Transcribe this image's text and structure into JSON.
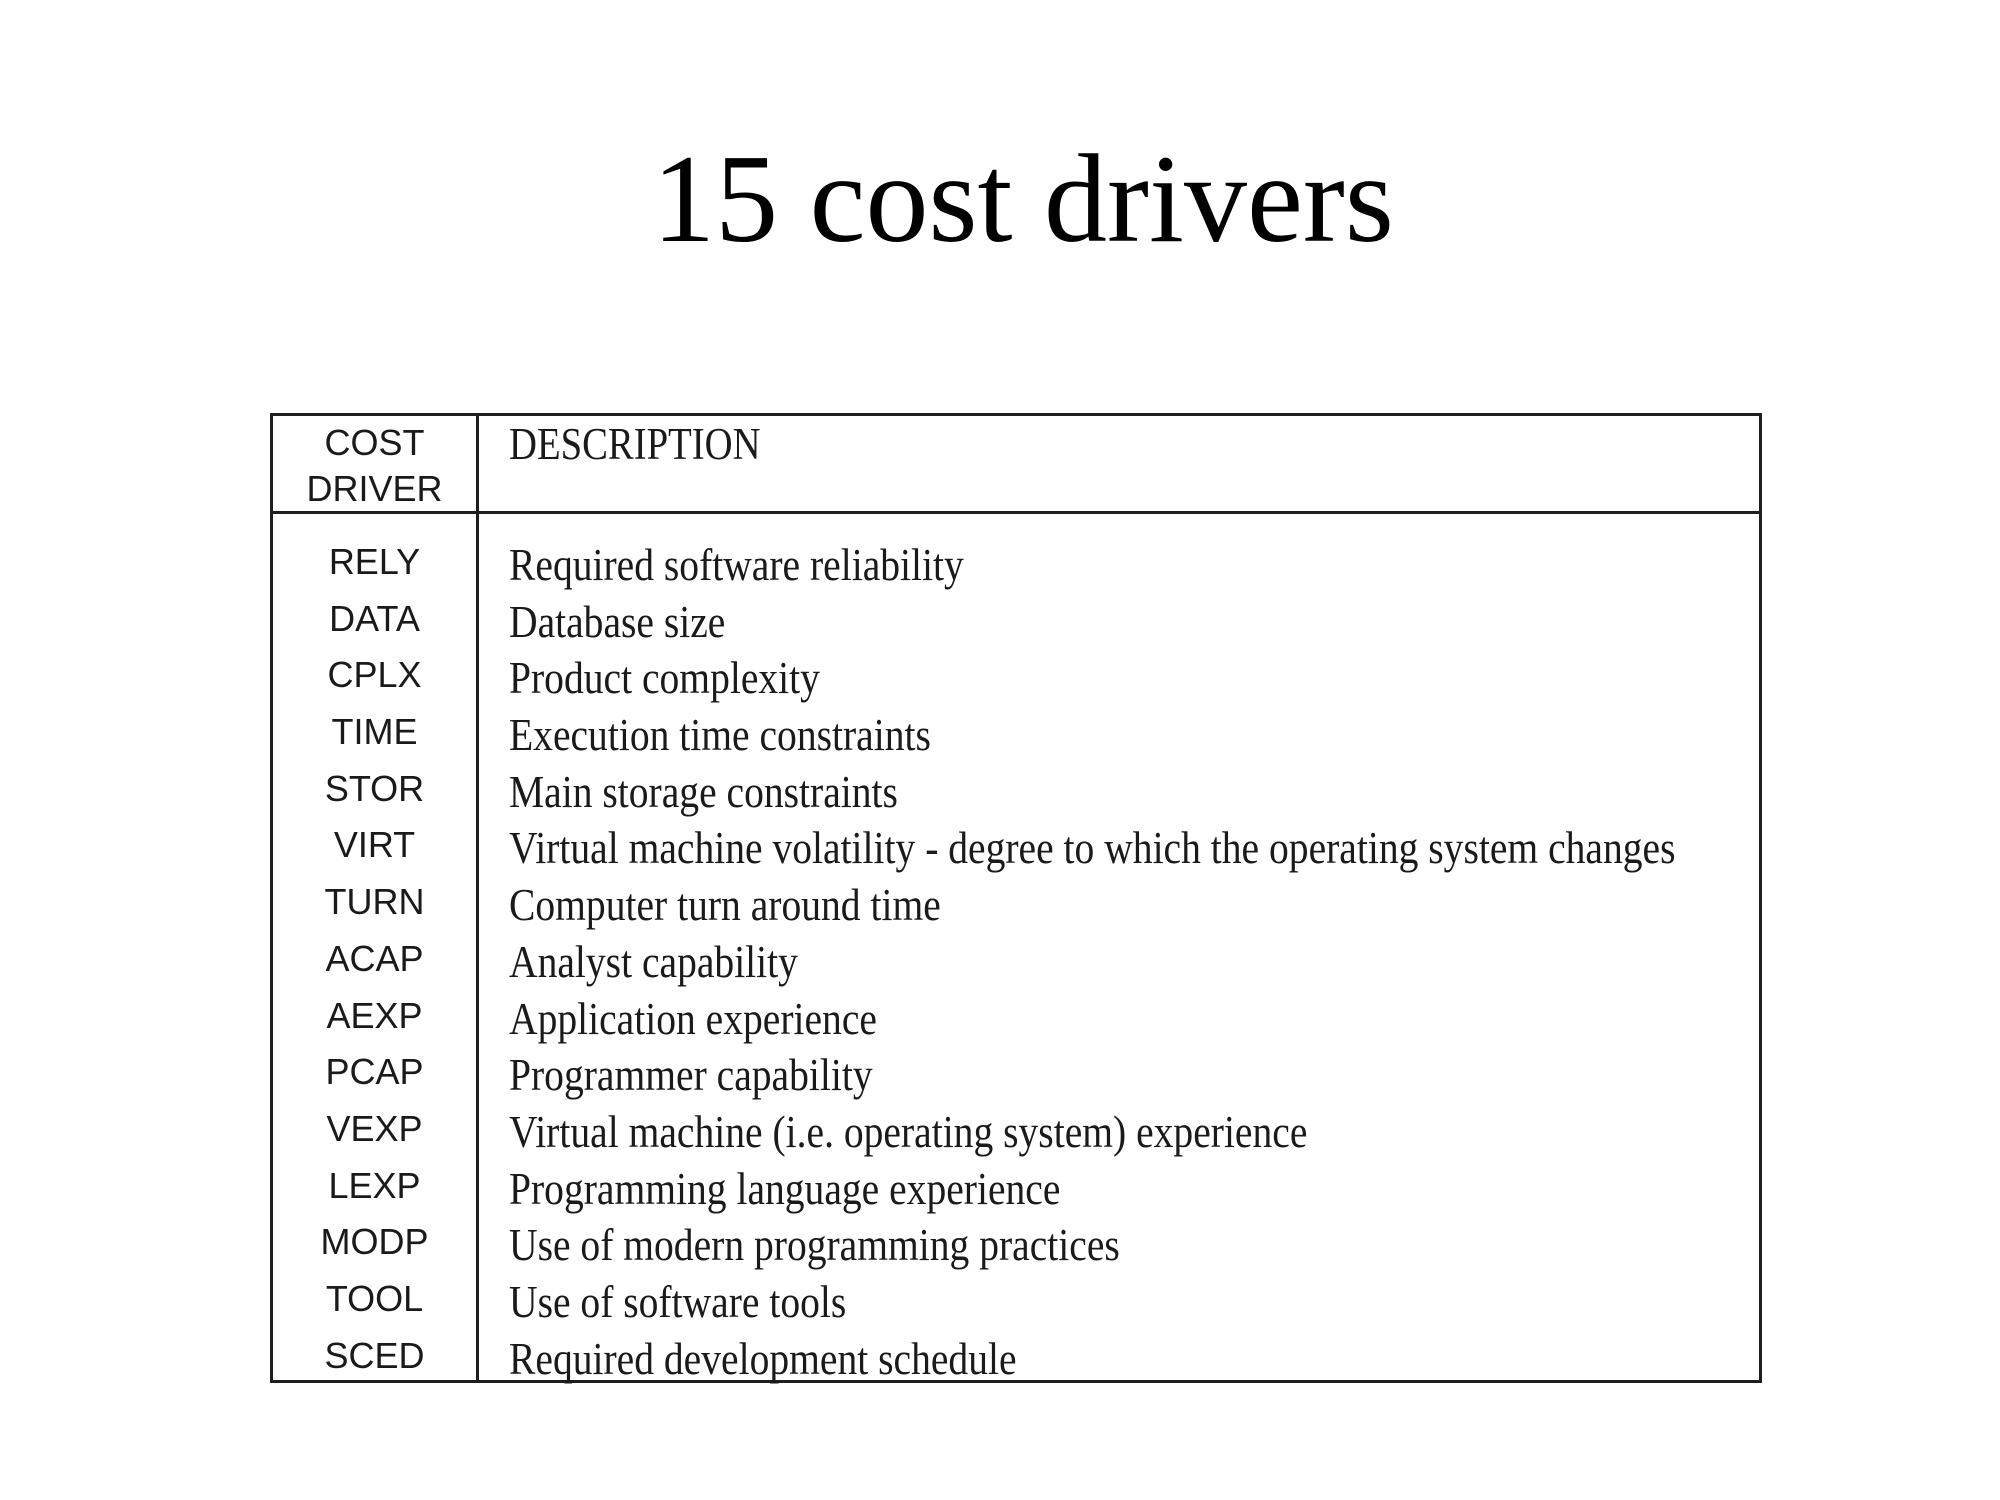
{
  "slide": {
    "title": "15 cost drivers"
  },
  "table": {
    "header": {
      "code_line1": "COST",
      "code_line2": "DRIVER",
      "description": "DESCRIPTION"
    },
    "rows": [
      {
        "code": "RELY",
        "description": "Required software reliability"
      },
      {
        "code": "DATA",
        "description": "Database size"
      },
      {
        "code": "CPLX",
        "description": "Product complexity"
      },
      {
        "code": "TIME",
        "description": "Execution time constraints"
      },
      {
        "code": "STOR",
        "description": "Main storage constraints"
      },
      {
        "code": "VIRT",
        "description": "Virtual machine volatility - degree to which the operating system changes"
      },
      {
        "code": "TURN",
        "description": "Computer turn around time"
      },
      {
        "code": "ACAP",
        "description": "Analyst capability"
      },
      {
        "code": "AEXP",
        "description": "Application experience"
      },
      {
        "code": "PCAP",
        "description": "Programmer capability"
      },
      {
        "code": "VEXP",
        "description": "Virtual machine (i.e. operating system) experience"
      },
      {
        "code": "LEXP",
        "description": "Programming language experience"
      },
      {
        "code": "MODP",
        "description": "Use of modern programming practices"
      },
      {
        "code": "TOOL",
        "description": "Use of software tools"
      },
      {
        "code": "SCED",
        "description": "Required development schedule"
      }
    ]
  }
}
